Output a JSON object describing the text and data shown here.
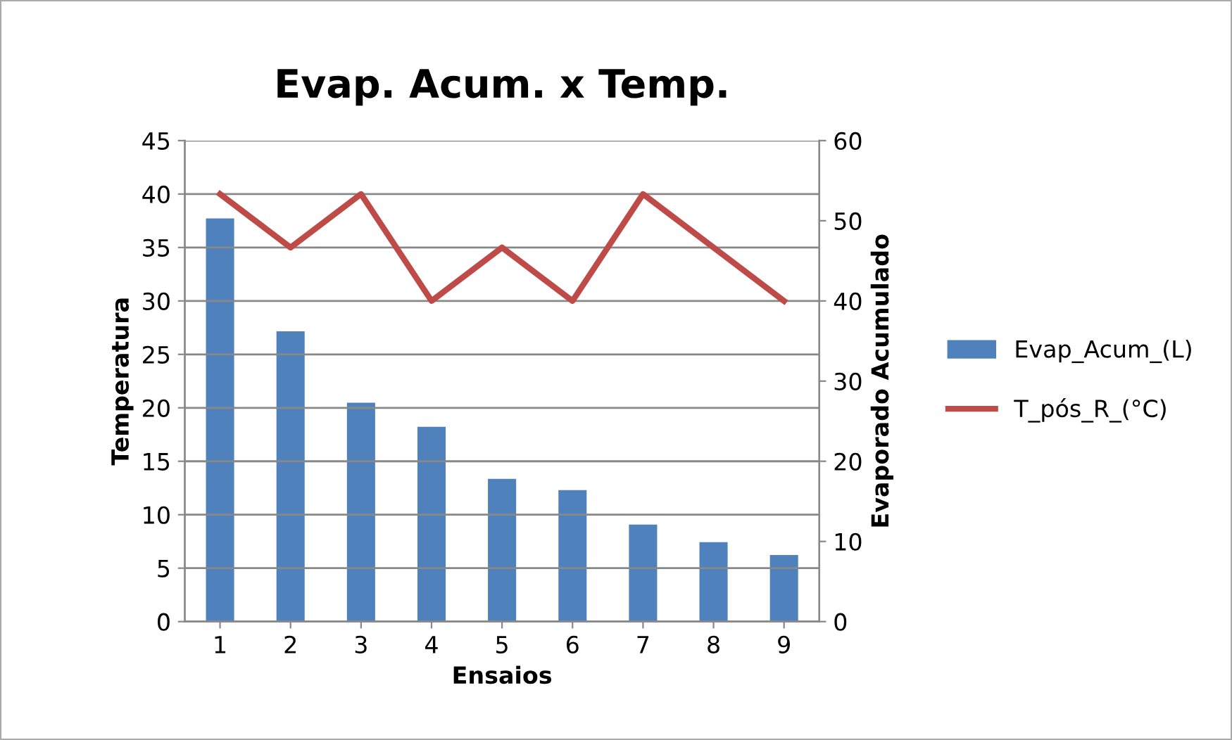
{
  "chart_data": {
    "type": "bar",
    "title": "Evap. Acum. x Temp.",
    "xlabel": "Ensaios",
    "ylabel": "Temperatura",
    "y2label": "Evaporado Acumulado",
    "categories": [
      "1",
      "2",
      "3",
      "4",
      "5",
      "6",
      "7",
      "8",
      "9"
    ],
    "series": [
      {
        "name": "Evap_Acum_(L)",
        "axis": "y2",
        "color": "#4f81bd",
        "values": [
          50.3,
          36.2,
          27.3,
          24.3,
          17.8,
          16.4,
          12.1,
          9.9,
          8.3
        ]
      },
      {
        "name": "T_pós_R_(°C)",
        "type": "line",
        "color": "#be4b48",
        "values": [
          40,
          35,
          40,
          30,
          35,
          30,
          40,
          35,
          30
        ]
      }
    ],
    "ylim": [
      0,
      45
    ],
    "yticks": [
      0,
      5,
      10,
      15,
      20,
      25,
      30,
      35,
      40,
      45
    ],
    "y2lim": [
      0,
      60
    ],
    "y2ticks": [
      0,
      10,
      20,
      30,
      40,
      50,
      60
    ],
    "grid": "y",
    "legend": "right",
    "marker": "none"
  }
}
